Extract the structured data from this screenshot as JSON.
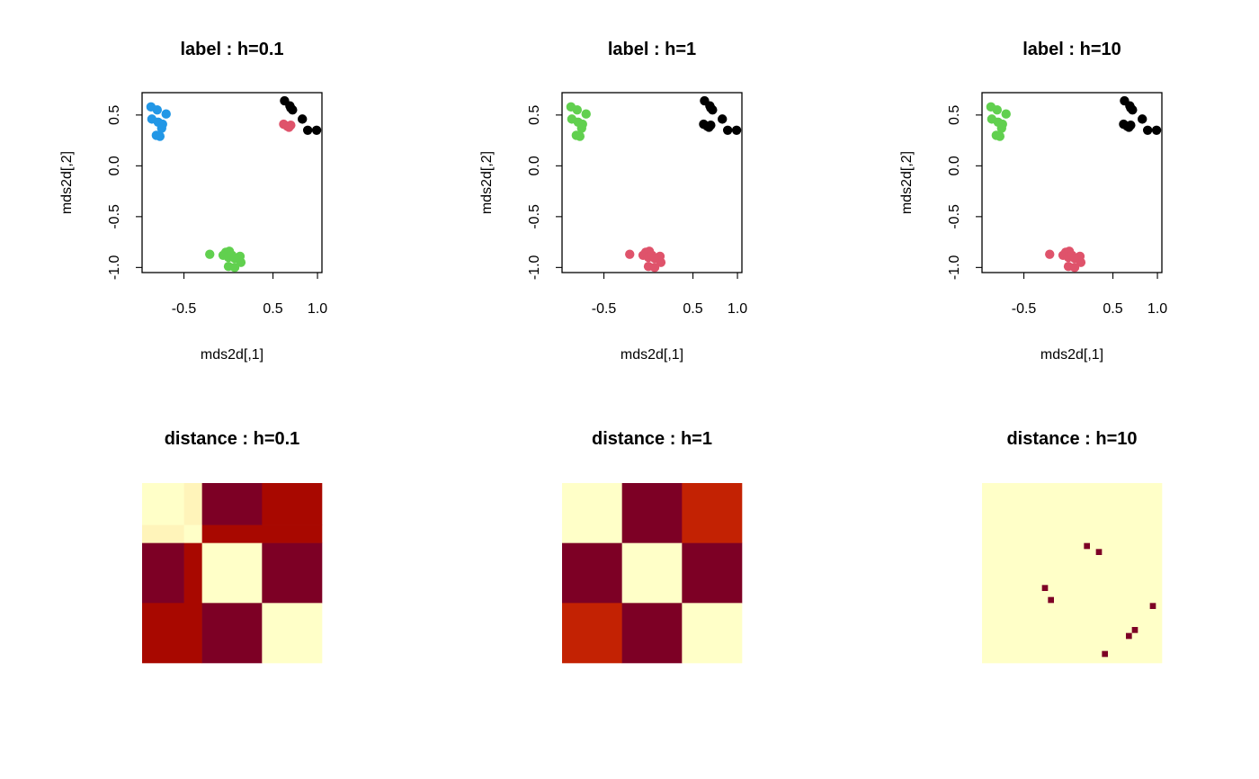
{
  "colors": {
    "black": "#000000",
    "red": "#DF536B",
    "green": "#61D04F",
    "blue": "#2297E6",
    "heat_low": "#FFFFC8",
    "heat_lowmid": "#FFF4BA",
    "heat_midhigh": "#C32203",
    "heat_high": "#A80800",
    "heat_max": "#7D0025"
  },
  "chart_data": [
    {
      "type": "scatter",
      "title": "label : h=0.1",
      "xlabel": "mds2d[,1]",
      "ylabel": "mds2d[,2]",
      "xlim": [
        -0.97,
        1.05
      ],
      "ylim": [
        -1.05,
        0.72
      ],
      "xticks": [
        -0.5,
        0.5,
        1.0
      ],
      "xtick_labels": [
        "-0.5",
        "0.5",
        "1.0"
      ],
      "yticks": [
        -1.0,
        -0.5,
        0.0,
        0.5
      ],
      "ytick_labels": [
        "-1.0",
        "-0.5",
        "0.0",
        "0.5"
      ],
      "grid": false,
      "series": [
        {
          "color": "black",
          "points": [
            [
              0.63,
              0.64
            ],
            [
              0.69,
              0.59
            ],
            [
              0.72,
              0.55
            ],
            [
              0.7,
              0.57
            ],
            [
              0.83,
              0.46
            ],
            [
              0.89,
              0.35
            ],
            [
              0.99,
              0.35
            ]
          ]
        },
        {
          "color": "red",
          "points": [
            [
              0.62,
              0.41
            ],
            [
              0.66,
              0.39
            ],
            [
              0.7,
              0.4
            ],
            [
              0.68,
              0.38
            ]
          ]
        },
        {
          "color": "blue",
          "points": [
            [
              -0.87,
              0.58
            ],
            [
              -0.8,
              0.55
            ],
            [
              -0.7,
              0.51
            ],
            [
              -0.86,
              0.46
            ],
            [
              -0.79,
              0.43
            ],
            [
              -0.74,
              0.41
            ],
            [
              -0.75,
              0.37
            ],
            [
              -0.81,
              0.3
            ],
            [
              -0.77,
              0.29
            ]
          ]
        },
        {
          "color": "green",
          "points": [
            [
              -0.21,
              -0.87
            ],
            [
              -0.06,
              -0.88
            ],
            [
              -0.03,
              -0.85
            ],
            [
              0.01,
              -0.84
            ],
            [
              0.0,
              -0.9
            ],
            [
              0.04,
              -0.88
            ],
            [
              0.13,
              -0.89
            ],
            [
              0.14,
              -0.95
            ],
            [
              0.07,
              -0.91
            ],
            [
              0.0,
              -0.99
            ],
            [
              0.07,
              -1.0
            ]
          ]
        }
      ]
    },
    {
      "type": "scatter",
      "title": "label : h=1",
      "xlabel": "mds2d[,1]",
      "ylabel": "mds2d[,2]",
      "xlim": [
        -0.97,
        1.05
      ],
      "ylim": [
        -1.05,
        0.72
      ],
      "xticks": [
        -0.5,
        0.5,
        1.0
      ],
      "xtick_labels": [
        "-0.5",
        "0.5",
        "1.0"
      ],
      "yticks": [
        -1.0,
        -0.5,
        0.0,
        0.5
      ],
      "ytick_labels": [
        "-1.0",
        "-0.5",
        "0.0",
        "0.5"
      ],
      "grid": false,
      "series": [
        {
          "color": "black",
          "points": [
            [
              0.63,
              0.64
            ],
            [
              0.69,
              0.59
            ],
            [
              0.72,
              0.55
            ],
            [
              0.7,
              0.57
            ],
            [
              0.83,
              0.46
            ],
            [
              0.89,
              0.35
            ],
            [
              0.99,
              0.35
            ],
            [
              0.62,
              0.41
            ],
            [
              0.66,
              0.39
            ],
            [
              0.7,
              0.4
            ],
            [
              0.68,
              0.38
            ]
          ]
        },
        {
          "color": "green",
          "points": [
            [
              -0.87,
              0.58
            ],
            [
              -0.8,
              0.55
            ],
            [
              -0.7,
              0.51
            ],
            [
              -0.86,
              0.46
            ],
            [
              -0.79,
              0.43
            ],
            [
              -0.74,
              0.41
            ],
            [
              -0.75,
              0.37
            ],
            [
              -0.81,
              0.3
            ],
            [
              -0.77,
              0.29
            ]
          ]
        },
        {
          "color": "red",
          "points": [
            [
              -0.21,
              -0.87
            ],
            [
              -0.06,
              -0.88
            ],
            [
              -0.03,
              -0.85
            ],
            [
              0.01,
              -0.84
            ],
            [
              0.0,
              -0.9
            ],
            [
              0.04,
              -0.88
            ],
            [
              0.13,
              -0.89
            ],
            [
              0.14,
              -0.95
            ],
            [
              0.07,
              -0.91
            ],
            [
              0.0,
              -0.99
            ],
            [
              0.07,
              -1.0
            ]
          ]
        }
      ]
    },
    {
      "type": "scatter",
      "title": "label : h=10",
      "xlabel": "mds2d[,1]",
      "ylabel": "mds2d[,2]",
      "xlim": [
        -0.97,
        1.05
      ],
      "ylim": [
        -1.05,
        0.72
      ],
      "xticks": [
        -0.5,
        0.5,
        1.0
      ],
      "xtick_labels": [
        "-0.5",
        "0.5",
        "1.0"
      ],
      "yticks": [
        -1.0,
        -0.5,
        0.0,
        0.5
      ],
      "ytick_labels": [
        "-1.0",
        "-0.5",
        "0.0",
        "0.5"
      ],
      "grid": false,
      "series": [
        {
          "color": "black",
          "points": [
            [
              0.63,
              0.64
            ],
            [
              0.69,
              0.59
            ],
            [
              0.72,
              0.55
            ],
            [
              0.7,
              0.57
            ],
            [
              0.83,
              0.46
            ],
            [
              0.89,
              0.35
            ],
            [
              0.99,
              0.35
            ],
            [
              0.62,
              0.41
            ],
            [
              0.66,
              0.39
            ],
            [
              0.7,
              0.4
            ],
            [
              0.68,
              0.38
            ]
          ]
        },
        {
          "color": "green",
          "points": [
            [
              -0.87,
              0.58
            ],
            [
              -0.8,
              0.55
            ],
            [
              -0.7,
              0.51
            ],
            [
              -0.86,
              0.46
            ],
            [
              -0.79,
              0.43
            ],
            [
              -0.74,
              0.41
            ],
            [
              -0.75,
              0.37
            ],
            [
              -0.81,
              0.3
            ],
            [
              -0.77,
              0.29
            ]
          ]
        },
        {
          "color": "red",
          "points": [
            [
              -0.21,
              -0.87
            ],
            [
              -0.06,
              -0.88
            ],
            [
              -0.03,
              -0.85
            ],
            [
              0.01,
              -0.84
            ],
            [
              0.0,
              -0.9
            ],
            [
              0.04,
              -0.88
            ],
            [
              0.13,
              -0.89
            ],
            [
              0.14,
              -0.95
            ],
            [
              0.07,
              -0.91
            ],
            [
              0.0,
              -0.99
            ],
            [
              0.07,
              -1.0
            ]
          ]
        }
      ]
    },
    {
      "type": "heatmap",
      "title": "distance : h=0.1",
      "n": 30,
      "blocks": [
        {
          "rows": [
            0,
            7
          ],
          "cols": [
            0,
            7
          ],
          "color": "heat_low"
        },
        {
          "rows": [
            0,
            7
          ],
          "cols": [
            7,
            10
          ],
          "color": "heat_lowmid"
        },
        {
          "rows": [
            0,
            7
          ],
          "cols": [
            10,
            20
          ],
          "color": "heat_max"
        },
        {
          "rows": [
            0,
            7
          ],
          "cols": [
            20,
            30
          ],
          "color": "heat_high"
        },
        {
          "rows": [
            7,
            10
          ],
          "cols": [
            0,
            7
          ],
          "color": "heat_lowmid"
        },
        {
          "rows": [
            7,
            10
          ],
          "cols": [
            7,
            10
          ],
          "color": "heat_low"
        },
        {
          "rows": [
            7,
            10
          ],
          "cols": [
            10,
            30
          ],
          "color": "heat_high"
        },
        {
          "rows": [
            10,
            20
          ],
          "cols": [
            0,
            7
          ],
          "color": "heat_max"
        },
        {
          "rows": [
            10,
            20
          ],
          "cols": [
            7,
            10
          ],
          "color": "heat_high"
        },
        {
          "rows": [
            10,
            20
          ],
          "cols": [
            10,
            20
          ],
          "color": "heat_low"
        },
        {
          "rows": [
            10,
            20
          ],
          "cols": [
            20,
            30
          ],
          "color": "heat_max"
        },
        {
          "rows": [
            20,
            30
          ],
          "cols": [
            0,
            10
          ],
          "color": "heat_high"
        },
        {
          "rows": [
            20,
            30
          ],
          "cols": [
            10,
            20
          ],
          "color": "heat_max"
        },
        {
          "rows": [
            20,
            30
          ],
          "cols": [
            20,
            30
          ],
          "color": "heat_low"
        }
      ],
      "cells": []
    },
    {
      "type": "heatmap",
      "title": "distance : h=1",
      "n": 30,
      "blocks": [
        {
          "rows": [
            0,
            10
          ],
          "cols": [
            0,
            10
          ],
          "color": "heat_low"
        },
        {
          "rows": [
            0,
            10
          ],
          "cols": [
            10,
            20
          ],
          "color": "heat_max"
        },
        {
          "rows": [
            0,
            10
          ],
          "cols": [
            20,
            30
          ],
          "color": "heat_midhigh"
        },
        {
          "rows": [
            10,
            20
          ],
          "cols": [
            0,
            10
          ],
          "color": "heat_max"
        },
        {
          "rows": [
            10,
            20
          ],
          "cols": [
            10,
            20
          ],
          "color": "heat_low"
        },
        {
          "rows": [
            10,
            20
          ],
          "cols": [
            20,
            30
          ],
          "color": "heat_max"
        },
        {
          "rows": [
            20,
            30
          ],
          "cols": [
            0,
            10
          ],
          "color": "heat_midhigh"
        },
        {
          "rows": [
            20,
            30
          ],
          "cols": [
            10,
            20
          ],
          "color": "heat_max"
        },
        {
          "rows": [
            20,
            30
          ],
          "cols": [
            20,
            30
          ],
          "color": "heat_low"
        }
      ],
      "cells": []
    },
    {
      "type": "heatmap",
      "title": "distance : h=10",
      "n": 30,
      "blocks": [
        {
          "rows": [
            0,
            30
          ],
          "cols": [
            0,
            30
          ],
          "color": "heat_low"
        }
      ],
      "cells": [
        {
          "row": 10,
          "col": 17,
          "color": "heat_max"
        },
        {
          "row": 11,
          "col": 19,
          "color": "heat_max"
        },
        {
          "row": 17,
          "col": 10,
          "color": "heat_max"
        },
        {
          "row": 19,
          "col": 11,
          "color": "heat_max"
        },
        {
          "row": 20,
          "col": 28,
          "color": "heat_max"
        },
        {
          "row": 24,
          "col": 25,
          "color": "heat_max"
        },
        {
          "row": 25,
          "col": 24,
          "color": "heat_max"
        },
        {
          "row": 28,
          "col": 20,
          "color": "heat_max"
        }
      ]
    }
  ]
}
